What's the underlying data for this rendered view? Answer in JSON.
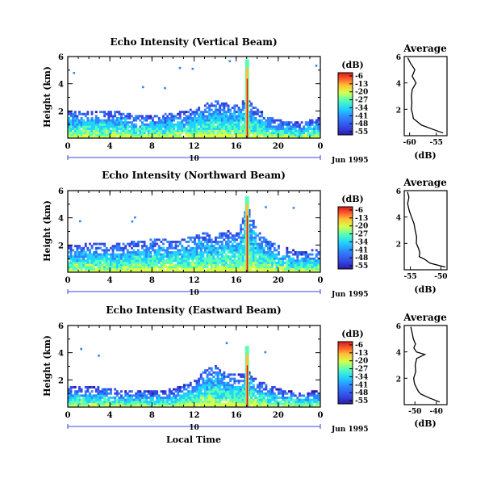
{
  "figure": {
    "xlabel": "Local Time",
    "date_label": "Jun 1995",
    "day_label": "10",
    "colorbar_unit": "(dB)",
    "profile_title": "Average",
    "profile_xlabel": "(dB)"
  },
  "colors": {
    "colormap": [
      "#2a1ca8",
      "#3547e3",
      "#2f84ff",
      "#1fd2ff",
      "#5affb5",
      "#d6ff4b",
      "#ffc033",
      "#ff5a2a",
      "#d21a1a"
    ]
  },
  "chart_data": [
    {
      "type": "heatmap",
      "title": "Echo Intensity (Vertical Beam)",
      "ylabel": "Height (km)",
      "xlabel": "",
      "xlim": [
        0,
        24
      ],
      "ylim": [
        0,
        6
      ],
      "x_ticks": [
        "0",
        "4",
        "8",
        "12",
        "16",
        "20",
        "0"
      ],
      "y_ticks": [
        "2",
        "4",
        "6"
      ],
      "colorbar_ticks": [
        "-6",
        "-13",
        "-20",
        "-27",
        "-34",
        "-41",
        "-48",
        "-55"
      ],
      "colorbar_range": [
        -55,
        -6
      ],
      "echo_top_km": [
        [
          0,
          1.9
        ],
        [
          2,
          1.8
        ],
        [
          4,
          1.9
        ],
        [
          6,
          1.6
        ],
        [
          8,
          1.5
        ],
        [
          10,
          1.7
        ],
        [
          12,
          2.0
        ],
        [
          13,
          2.4
        ],
        [
          14,
          2.6
        ],
        [
          15,
          2.4
        ],
        [
          16,
          2.3
        ],
        [
          17,
          2.8
        ],
        [
          18,
          2.0
        ],
        [
          19,
          1.4
        ],
        [
          20,
          1.2
        ],
        [
          22,
          1.0
        ],
        [
          24,
          1.4
        ]
      ],
      "convective_column": {
        "time_h": 17.0,
        "top_km": 5.8
      },
      "profile": {
        "xlim": [
          -61,
          -53
        ],
        "x_ticks": [
          "-60",
          "-55"
        ],
        "y_ticks": [
          "2",
          "4",
          "6"
        ],
        "height_km": [
          0.2,
          0.5,
          0.8,
          1.0,
          1.3,
          1.6,
          2.0,
          2.5,
          3.0,
          3.5,
          4.0,
          4.5,
          5.0,
          5.5,
          5.9
        ],
        "avg_db": [
          -53.8,
          -55.5,
          -57.5,
          -58.5,
          -59.0,
          -59.5,
          -59.8,
          -59.5,
          -59.7,
          -59.3,
          -58.8,
          -59.4,
          -59.0,
          -59.6,
          -60.5
        ]
      }
    },
    {
      "type": "heatmap",
      "title": "Echo Intensity (Northward Beam)",
      "ylabel": "Height (km)",
      "xlabel": "",
      "xlim": [
        0,
        24
      ],
      "ylim": [
        0,
        6
      ],
      "x_ticks": [
        "0",
        "4",
        "8",
        "12",
        "16",
        "20",
        "0"
      ],
      "y_ticks": [
        "2",
        "4",
        "6"
      ],
      "colorbar_ticks": [
        "-6",
        "-13",
        "-20",
        "-27",
        "-34",
        "-41",
        "-48",
        "-55"
      ],
      "colorbar_range": [
        -55,
        -6
      ],
      "echo_top_km": [
        [
          0,
          1.8
        ],
        [
          2,
          2.0
        ],
        [
          4,
          1.9
        ],
        [
          6,
          2.1
        ],
        [
          8,
          2.3
        ],
        [
          10,
          2.2
        ],
        [
          12,
          2.5
        ],
        [
          13,
          2.8
        ],
        [
          14,
          2.6
        ],
        [
          15,
          2.9
        ],
        [
          16,
          2.7
        ],
        [
          17,
          4.8
        ],
        [
          18,
          2.8
        ],
        [
          19,
          2.2
        ],
        [
          20,
          1.8
        ],
        [
          22,
          1.3
        ],
        [
          24,
          1.6
        ]
      ],
      "convective_column": {
        "time_h": 17.0,
        "top_km": 5.6
      },
      "profile": {
        "xlim": [
          -56,
          -49
        ],
        "x_ticks": [
          "-55",
          "-50"
        ],
        "y_ticks": [
          "2",
          "4",
          "6"
        ],
        "height_km": [
          0.2,
          0.5,
          0.8,
          1.0,
          1.3,
          1.6,
          2.0,
          2.5,
          3.0,
          3.5,
          4.0,
          4.5,
          5.0,
          5.5,
          5.9
        ],
        "avg_db": [
          -49.5,
          -51.5,
          -52.8,
          -53.3,
          -53.6,
          -53.8,
          -53.9,
          -54.1,
          -54.3,
          -54.6,
          -54.9,
          -55.1,
          -55.3,
          -55.5,
          -55.7
        ]
      }
    },
    {
      "type": "heatmap",
      "title": "Echo Intensity (Eastward Beam)",
      "ylabel": "Height (km)",
      "xlabel": "Local Time",
      "xlim": [
        0,
        24
      ],
      "ylim": [
        0,
        6
      ],
      "x_ticks": [
        "0",
        "4",
        "8",
        "12",
        "16",
        "20",
        "0"
      ],
      "y_ticks": [
        "2",
        "4",
        "6"
      ],
      "colorbar_ticks": [
        "-6",
        "-13",
        "-20",
        "-27",
        "-34",
        "-41",
        "-48",
        "-55"
      ],
      "colorbar_range": [
        -55,
        -6
      ],
      "echo_top_km": [
        [
          0,
          1.3
        ],
        [
          2,
          1.4
        ],
        [
          4,
          1.2
        ],
        [
          6,
          1.1
        ],
        [
          8,
          1.0
        ],
        [
          10,
          1.2
        ],
        [
          12,
          1.8
        ],
        [
          13,
          2.6
        ],
        [
          14,
          2.9
        ],
        [
          15,
          2.4
        ],
        [
          16,
          2.2
        ],
        [
          17,
          2.5
        ],
        [
          18,
          1.8
        ],
        [
          19,
          1.5
        ],
        [
          20,
          1.2
        ],
        [
          22,
          0.9
        ],
        [
          24,
          1.1
        ]
      ],
      "convective_column": {
        "time_h": 17.0,
        "top_km": 4.5
      },
      "profile": {
        "xlim": [
          -55,
          -35
        ],
        "x_ticks": [
          "-50",
          "-40"
        ],
        "y_ticks": [
          "2",
          "4",
          "6"
        ],
        "height_km": [
          0.2,
          0.5,
          0.8,
          1.0,
          1.3,
          1.6,
          2.0,
          2.5,
          3.0,
          3.5,
          3.8,
          4.0,
          4.3,
          4.6,
          5.0,
          5.5,
          5.9
        ],
        "avg_db": [
          -38.5,
          -43.0,
          -47.0,
          -48.5,
          -49.5,
          -50.0,
          -50.3,
          -49.5,
          -50.0,
          -49.2,
          -45.5,
          -49.5,
          -50.5,
          -50.0,
          -51.0,
          -51.2,
          -52.0
        ]
      }
    }
  ]
}
